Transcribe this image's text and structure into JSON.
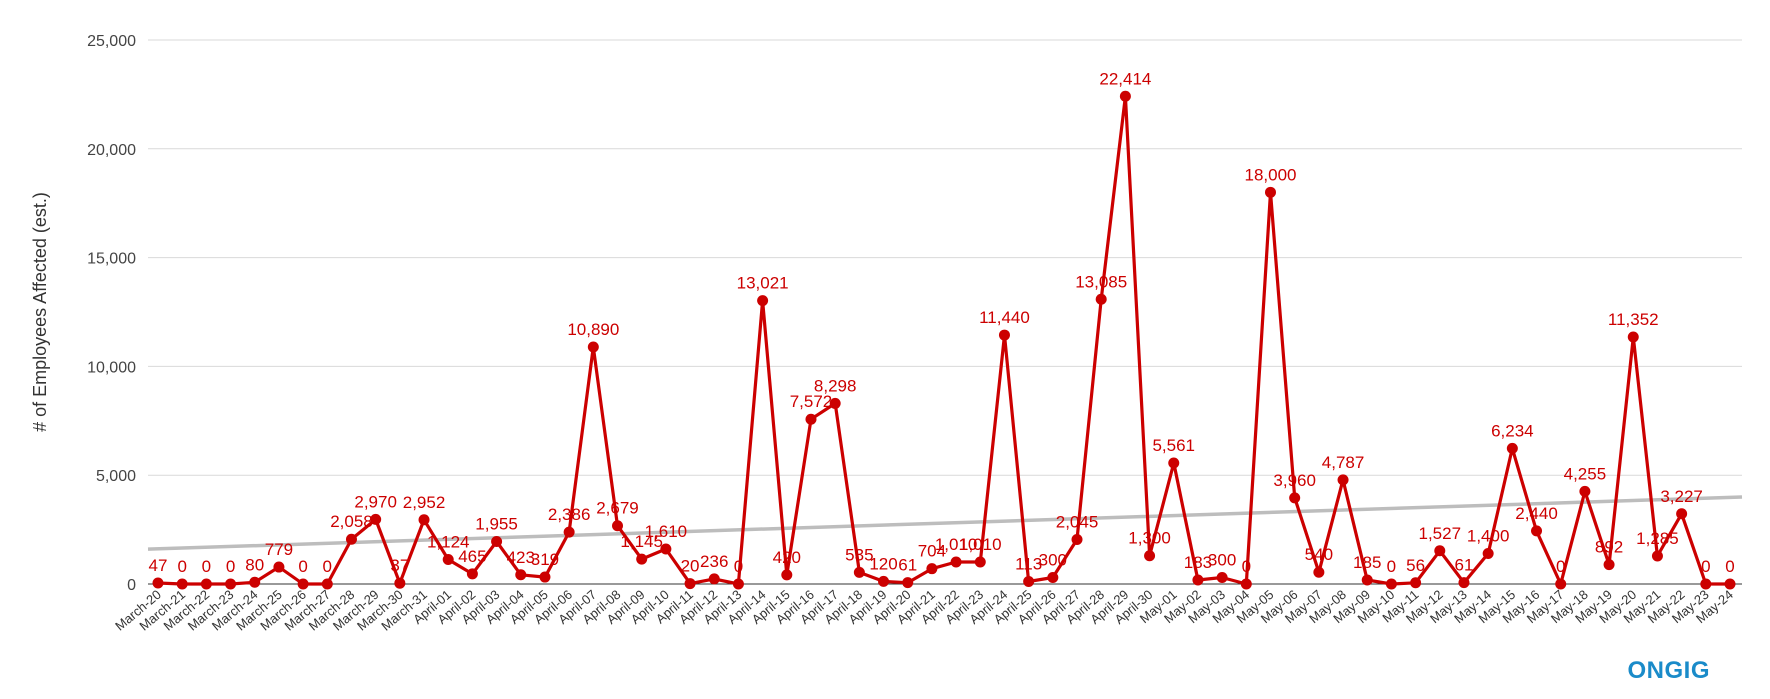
{
  "brand": {
    "logo_text": "ONGIG",
    "color": "#1a8bc9"
  },
  "colors": {
    "series": "#cc0000",
    "trend": "#bdbdbd",
    "grid": "#d9d9d9"
  },
  "chart_data": {
    "type": "line",
    "title": "",
    "xlabel": "",
    "ylabel": "# of Employees Affected (est.)",
    "ylim": [
      0,
      25000
    ],
    "yticks": [
      0,
      5000,
      10000,
      15000,
      20000,
      25000
    ],
    "ytick_labels": [
      "0",
      "5,000",
      "10,000",
      "15,000",
      "20,000",
      "25,000"
    ],
    "grid": true,
    "legend": "none",
    "trendline": {
      "start": 1600,
      "end": 4000
    },
    "categories": [
      "March-20",
      "March-21",
      "March-22",
      "March-23",
      "March-24",
      "March-25",
      "March-26",
      "March-27",
      "March-28",
      "March-29",
      "March-30",
      "March-31",
      "April-01",
      "April-02",
      "April-03",
      "April-04",
      "April-05",
      "April-06",
      "April-07",
      "April-08",
      "April-09",
      "April-10",
      "April-11",
      "April-12",
      "April-13",
      "April-14",
      "April-15",
      "April-16",
      "April-17",
      "April-18",
      "April-19",
      "April-20",
      "April-21",
      "April-22",
      "April-23",
      "April-24",
      "April-25",
      "April-26",
      "April-27",
      "April-28",
      "April-29",
      "April-30",
      "May-01",
      "May-02",
      "May-03",
      "May-04",
      "May-05",
      "May-06",
      "May-07",
      "May-08",
      "May-09",
      "May-10",
      "May-11",
      "May-12",
      "May-13",
      "May-14",
      "May-15",
      "May-16",
      "May-17",
      "May-18",
      "May-19",
      "May-20",
      "May-21",
      "May-22",
      "May-23",
      "May-24"
    ],
    "values": [
      47,
      0,
      0,
      0,
      80,
      779,
      0,
      0,
      2058,
      2970,
      37,
      2952,
      1124,
      465,
      1955,
      423,
      319,
      2386,
      10890,
      2679,
      1145,
      1610,
      20,
      236,
      0,
      13021,
      420,
      7572,
      8298,
      535,
      120,
      61,
      704,
      1010,
      1010,
      11440,
      113,
      300,
      2045,
      13085,
      22414,
      1300,
      5561,
      183,
      300,
      0,
      18000,
      3960,
      540,
      4787,
      185,
      0,
      56,
      1527,
      61,
      1400,
      6234,
      2440,
      0,
      4255,
      892,
      11352,
      1285,
      3227,
      0,
      0
    ],
    "data_labels": [
      "47",
      "0",
      "0",
      "0",
      "80",
      "779",
      "0",
      "0",
      "2,058",
      "2,970",
      "37",
      "2,952",
      "1,124",
      "465",
      "1,955",
      "423",
      "319",
      "2,386",
      "10,890",
      "2,679",
      "1,145",
      "1,610",
      "20",
      "236",
      "0",
      "13,021",
      "420",
      "7,572",
      "8,298",
      "535",
      "120",
      "61",
      "704",
      "1,010",
      "1,010",
      "11,440",
      "113",
      "300",
      "2,045",
      "13,085",
      "22,414",
      "1,300",
      "5,561",
      "183",
      "300",
      "0",
      "18,000",
      "3,960",
      "540",
      "4,787",
      "185",
      "0",
      "56",
      "1,527",
      "61",
      "1,400",
      "6,234",
      "2,440",
      "0",
      "4,255",
      "892",
      "11,352",
      "1,285",
      "3,227",
      "0",
      "0"
    ]
  }
}
